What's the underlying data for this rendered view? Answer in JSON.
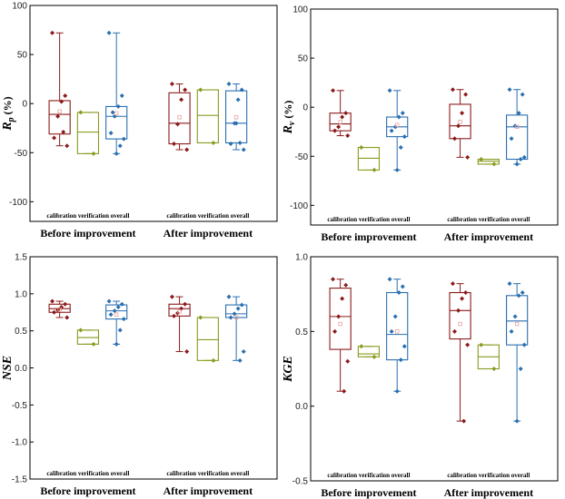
{
  "colors": {
    "calibration": "#8b1a1a",
    "verification": "#8a9a1e",
    "overall": "#2a6fb0",
    "mean_marker": "#e8a0a0"
  },
  "chart_data": [
    {
      "type": "box",
      "ylabel": "R_p (%)",
      "ylabel_main": "R",
      "ylabel_sub": "p",
      "ylabel_unit": " (%)",
      "ylim": [
        -120,
        100
      ],
      "yticks": [
        "100",
        "50",
        "0",
        "-50",
        "-100"
      ],
      "ytick_values": [
        100,
        50,
        0,
        -50,
        -100
      ],
      "groups": [
        "Before improvement",
        "After improvement"
      ],
      "series": [
        "calibration",
        "verification",
        "overall"
      ],
      "group_labels": [
        "calibration",
        "verification",
        "overall"
      ],
      "boxes": [
        [
          {
            "q1": -31,
            "median": -11,
            "q3": 3,
            "mean": -8,
            "points": [
              72,
              8,
              2,
              -13,
              -35,
              -43,
              -29
            ]
          },
          {
            "q1": -51,
            "median": -29,
            "q3": -9,
            "points": [
              -9,
              -51
            ]
          },
          {
            "q1": -36,
            "median": -13,
            "q3": -3,
            "mean": -10,
            "points": [
              72,
              8,
              -3,
              -13,
              -30,
              -36,
              -43,
              -51,
              -9
            ]
          }
        ],
        [
          {
            "q1": -41,
            "median": -20,
            "q3": 11,
            "mean": -14,
            "points": [
              20,
              14,
              4,
              -21,
              -41,
              -47
            ]
          },
          {
            "q1": -40,
            "median": -12,
            "q3": 14,
            "points": [
              14,
              -40
            ]
          },
          {
            "q1": -40,
            "median": -20,
            "q3": 13,
            "mean": -14,
            "points": [
              20,
              14,
              4,
              -20,
              -41,
              -47,
              -40,
              -20
            ]
          }
        ]
      ]
    },
    {
      "type": "box",
      "ylabel": "R_v (%)",
      "ylabel_main": "R",
      "ylabel_sub": "v",
      "ylabel_unit": " (%)",
      "ylim": [
        -120,
        100
      ],
      "yticks": [
        "100",
        "50",
        "0",
        "-50",
        "-100"
      ],
      "ytick_values": [
        100,
        50,
        0,
        -50,
        -100
      ],
      "groups": [
        "Before improvement",
        "After improvement"
      ],
      "series": [
        "calibration",
        "verification",
        "overall"
      ],
      "group_labels": [
        "calibration",
        "verification",
        "overall"
      ],
      "boxes": [
        [
          {
            "q1": -24,
            "median": -17,
            "q3": -6,
            "mean": -15,
            "points": [
              17,
              -6,
              -10,
              -20,
              -24,
              -29
            ]
          },
          {
            "q1": -64,
            "median": -52,
            "q3": -41,
            "points": [
              -41,
              -64
            ]
          },
          {
            "q1": -30,
            "median": -20,
            "q3": -10,
            "mean": -18,
            "points": [
              17,
              -6,
              -10,
              -20,
              -24,
              -30,
              -41,
              -64
            ]
          }
        ],
        [
          {
            "q1": -32,
            "median": -19,
            "q3": 3,
            "mean": -15,
            "points": [
              18,
              13,
              -6,
              -19,
              -32,
              -51
            ]
          },
          {
            "q1": -58,
            "median": -55,
            "q3": -53,
            "points": [
              -53,
              -58
            ]
          },
          {
            "q1": -53,
            "median": -20,
            "q3": -8,
            "mean": -20,
            "points": [
              18,
              13,
              -6,
              -19,
              -32,
              -51,
              -53,
              -58
            ]
          }
        ]
      ]
    },
    {
      "type": "box",
      "ylabel": "NSE",
      "ylabel_main": "NSE",
      "ylabel_sub": "",
      "ylabel_unit": "",
      "ylim": [
        -1.5,
        1.5
      ],
      "yticks": [
        "1.5",
        "1.0",
        "0.5",
        "0.0",
        "-0.5",
        "-1.0",
        "-1.5"
      ],
      "ytick_values": [
        1.5,
        1.0,
        0.5,
        0.0,
        -0.5,
        -1.0,
        -1.5
      ],
      "groups": [
        "Before improvement",
        "After improvement"
      ],
      "series": [
        "calibration",
        "verification",
        "overall"
      ],
      "group_labels": [
        "calibration",
        "verification",
        "overall"
      ],
      "boxes": [
        [
          {
            "q1": 0.75,
            "median": 0.8,
            "q3": 0.86,
            "mean": 0.79,
            "points": [
              0.9,
              0.86,
              0.82,
              0.78,
              0.75,
              0.68
            ]
          },
          {
            "q1": 0.32,
            "median": 0.41,
            "q3": 0.51,
            "points": [
              0.51,
              0.32
            ]
          },
          {
            "q1": 0.66,
            "median": 0.77,
            "q3": 0.85,
            "mean": 0.72,
            "points": [
              0.9,
              0.86,
              0.82,
              0.77,
              0.72,
              0.66,
              0.51,
              0.32
            ]
          }
        ],
        [
          {
            "q1": 0.7,
            "median": 0.8,
            "q3": 0.86,
            "mean": 0.76,
            "points": [
              0.96,
              0.86,
              0.8,
              0.74,
              0.7,
              0.22
            ]
          },
          {
            "q1": 0.1,
            "median": 0.38,
            "q3": 0.68,
            "points": [
              0.68,
              0.1
            ]
          },
          {
            "q1": 0.68,
            "median": 0.73,
            "q3": 0.85,
            "mean": 0.68,
            "points": [
              0.96,
              0.85,
              0.8,
              0.73,
              0.68,
              0.22,
              0.1
            ]
          }
        ]
      ]
    },
    {
      "type": "box",
      "ylabel": "KGE",
      "ylabel_main": "KGE",
      "ylabel_sub": "",
      "ylabel_unit": "",
      "ylim": [
        -0.5,
        1.0
      ],
      "yticks": [
        "1.0",
        "0.5",
        "0.0",
        "-0.5"
      ],
      "ytick_values": [
        1.0,
        0.5,
        0.0,
        -0.5
      ],
      "groups": [
        "Before improvement",
        "After improvement"
      ],
      "series": [
        "calibration",
        "verification",
        "overall"
      ],
      "group_labels": [
        "calibration",
        "verification",
        "overall"
      ],
      "boxes": [
        [
          {
            "q1": 0.38,
            "median": 0.6,
            "q3": 0.79,
            "mean": 0.55,
            "points": [
              0.85,
              0.81,
              0.72,
              0.6,
              0.5,
              0.3,
              0.1
            ]
          },
          {
            "q1": 0.33,
            "median": 0.35,
            "q3": 0.4,
            "points": [
              0.4,
              0.33
            ]
          },
          {
            "q1": 0.31,
            "median": 0.48,
            "q3": 0.76,
            "mean": 0.5,
            "points": [
              0.85,
              0.8,
              0.76,
              0.6,
              0.5,
              0.4,
              0.31,
              0.1
            ]
          }
        ],
        [
          {
            "q1": 0.45,
            "median": 0.64,
            "q3": 0.76,
            "mean": 0.55,
            "points": [
              0.82,
              0.76,
              0.72,
              0.64,
              0.5,
              0.41,
              -0.1
            ]
          },
          {
            "q1": 0.25,
            "median": 0.33,
            "q3": 0.41,
            "points": [
              0.41,
              0.25
            ]
          },
          {
            "q1": 0.41,
            "median": 0.57,
            "q3": 0.74,
            "mean": 0.55,
            "points": [
              0.82,
              0.76,
              0.74,
              0.6,
              0.5,
              0.41,
              0.25,
              -0.1
            ]
          }
        ]
      ]
    }
  ]
}
